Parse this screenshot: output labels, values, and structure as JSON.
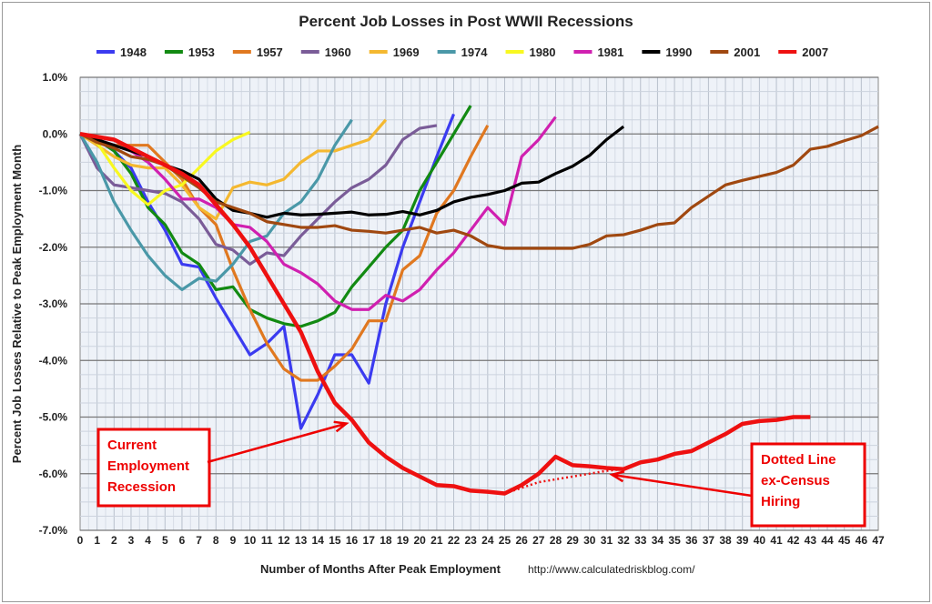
{
  "chart_data": {
    "type": "line",
    "title": "Percent Job Losses in Post WWII Recessions",
    "xlabel": "Number of Months After Peak Employment",
    "ylabel": "Percent Job Losses Relative to Peak Employment Month",
    "source": "http://www.calculatedriskblog.com/",
    "xlim": [
      0,
      47
    ],
    "ylim": [
      -7,
      1
    ],
    "grid": true,
    "legend": "top",
    "x_ticks": [
      0,
      1,
      2,
      3,
      4,
      5,
      6,
      7,
      8,
      9,
      10,
      11,
      12,
      13,
      14,
      15,
      16,
      17,
      18,
      19,
      20,
      21,
      22,
      23,
      24,
      25,
      26,
      27,
      28,
      29,
      30,
      31,
      32,
      33,
      34,
      35,
      36,
      37,
      38,
      39,
      40,
      41,
      42,
      43,
      44,
      45,
      46,
      47
    ],
    "y_ticks": [
      "1.0%",
      "0.0%",
      "-1.0%",
      "-2.0%",
      "-3.0%",
      "-4.0%",
      "-5.0%",
      "-6.0%",
      "-7.0%"
    ],
    "y_tick_values": [
      1,
      0,
      -1,
      -2,
      -3,
      -4,
      -5,
      -6,
      -7
    ],
    "series": [
      {
        "name": "1948",
        "color": "#3b3bf0",
        "values": [
          0,
          -0.1,
          -0.3,
          -0.6,
          -1.2,
          -1.7,
          -2.3,
          -2.35,
          -2.9,
          -3.4,
          -3.9,
          -3.7,
          -3.4,
          -5.2,
          -4.6,
          -3.9,
          -3.9,
          -4.4,
          -3.0,
          -2.0,
          -1.2,
          -0.4,
          0.35
        ]
      },
      {
        "name": "1953",
        "color": "#128a12",
        "values": [
          0,
          -0.1,
          -0.3,
          -0.7,
          -1.3,
          -1.6,
          -2.1,
          -2.3,
          -2.75,
          -2.7,
          -3.1,
          -3.25,
          -3.35,
          -3.4,
          -3.3,
          -3.15,
          -2.7,
          -2.35,
          -2.0,
          -1.7,
          -1.0,
          -0.5,
          0.0,
          0.5
        ]
      },
      {
        "name": "1957",
        "color": "#e07820",
        "values": [
          0,
          -0.1,
          -0.2,
          -0.2,
          -0.2,
          -0.5,
          -0.8,
          -1.3,
          -1.6,
          -2.4,
          -3.1,
          -3.7,
          -4.15,
          -4.35,
          -4.35,
          -4.1,
          -3.8,
          -3.3,
          -3.3,
          -2.4,
          -2.15,
          -1.4,
          -1.0,
          -0.4,
          0.15
        ]
      },
      {
        "name": "1960",
        "color": "#7a5c98",
        "values": [
          0,
          -0.6,
          -0.9,
          -0.95,
          -1.0,
          -1.05,
          -1.2,
          -1.5,
          -1.95,
          -2.05,
          -2.3,
          -2.1,
          -2.15,
          -1.8,
          -1.5,
          -1.2,
          -0.95,
          -0.8,
          -0.55,
          -0.1,
          0.1,
          0.15
        ]
      },
      {
        "name": "1969",
        "color": "#f4b830",
        "values": [
          0,
          -0.2,
          -0.4,
          -0.55,
          -0.6,
          -0.6,
          -0.9,
          -1.3,
          -1.5,
          -0.95,
          -0.85,
          -0.9,
          -0.8,
          -0.5,
          -0.3,
          -0.3,
          -0.2,
          -0.1,
          0.25
        ]
      },
      {
        "name": "1974",
        "color": "#4a98a8",
        "values": [
          0,
          -0.5,
          -1.2,
          -1.7,
          -2.15,
          -2.5,
          -2.75,
          -2.55,
          -2.6,
          -2.3,
          -1.9,
          -1.8,
          -1.4,
          -1.2,
          -0.8,
          -0.2,
          0.25
        ]
      },
      {
        "name": "1980",
        "color": "#f8f820",
        "values": [
          0,
          -0.15,
          -0.6,
          -1.0,
          -1.25,
          -1.0,
          -0.9,
          -0.6,
          -0.3,
          -0.1,
          0.03
        ]
      },
      {
        "name": "1981",
        "color": "#d020b0",
        "values": [
          0,
          -0.1,
          -0.2,
          -0.3,
          -0.5,
          -0.8,
          -1.15,
          -1.15,
          -1.3,
          -1.6,
          -1.65,
          -1.9,
          -2.3,
          -2.45,
          -2.65,
          -2.95,
          -3.1,
          -3.1,
          -2.85,
          -2.95,
          -2.75,
          -2.4,
          -2.1,
          -1.7,
          -1.3,
          -1.6,
          -0.4,
          -0.1,
          0.3
        ]
      },
      {
        "name": "1990",
        "color": "#000000",
        "values": [
          0,
          -0.1,
          -0.2,
          -0.3,
          -0.4,
          -0.55,
          -0.65,
          -0.8,
          -1.15,
          -1.35,
          -1.4,
          -1.47,
          -1.4,
          -1.43,
          -1.42,
          -1.4,
          -1.38,
          -1.43,
          -1.42,
          -1.37,
          -1.43,
          -1.35,
          -1.2,
          -1.12,
          -1.07,
          -1.0,
          -0.87,
          -0.85,
          -0.7,
          -0.57,
          -0.38,
          -0.1,
          0.13
        ]
      },
      {
        "name": "2001",
        "color": "#a04810",
        "values": [
          0,
          -0.15,
          -0.25,
          -0.4,
          -0.45,
          -0.55,
          -0.75,
          -0.95,
          -1.2,
          -1.3,
          -1.4,
          -1.55,
          -1.6,
          -1.65,
          -1.65,
          -1.62,
          -1.7,
          -1.72,
          -1.75,
          -1.7,
          -1.65,
          -1.75,
          -1.7,
          -1.8,
          -1.97,
          -2.02,
          -2.02,
          -2.02,
          -2.02,
          -2.02,
          -1.95,
          -1.8,
          -1.78,
          -1.7,
          -1.6,
          -1.57,
          -1.3,
          -1.1,
          -0.9,
          -0.82,
          -0.75,
          -0.68,
          -0.55,
          -0.27,
          -0.22,
          -0.12,
          -0.03,
          0.13
        ]
      },
      {
        "name": "2007",
        "color": "#ee1010",
        "values": [
          0,
          -0.05,
          -0.1,
          -0.25,
          -0.4,
          -0.55,
          -0.7,
          -0.9,
          -1.25,
          -1.6,
          -2.0,
          -2.5,
          -3.0,
          -3.5,
          -4.2,
          -4.75,
          -5.05,
          -5.45,
          -5.7,
          -5.9,
          -6.05,
          -6.2,
          -6.22,
          -6.3,
          -6.32,
          -6.35,
          -6.2,
          -6.0,
          -5.7,
          -5.85,
          -5.87,
          -5.9,
          -5.92,
          -5.8,
          -5.75,
          -5.65,
          -5.6,
          -5.45,
          -5.3,
          -5.12,
          -5.07,
          -5.05,
          -5.0,
          -5.0
        ]
      }
    ],
    "dotted_ex_census": {
      "x": [
        25,
        26,
        27,
        28,
        29,
        30,
        31,
        32
      ],
      "values": [
        -6.35,
        -6.25,
        -6.15,
        -6.1,
        -6.05,
        -6.0,
        -5.95,
        -5.92
      ],
      "color": "#ee1010"
    },
    "annotations": [
      {
        "lines": [
          "Current",
          "Employment",
          "Recession"
        ],
        "points_to": [
          16,
          -5.05
        ]
      },
      {
        "lines": [
          "Dotted Line",
          "ex-Census",
          "Hiring"
        ],
        "points_to": [
          31,
          -6.05
        ]
      }
    ]
  }
}
